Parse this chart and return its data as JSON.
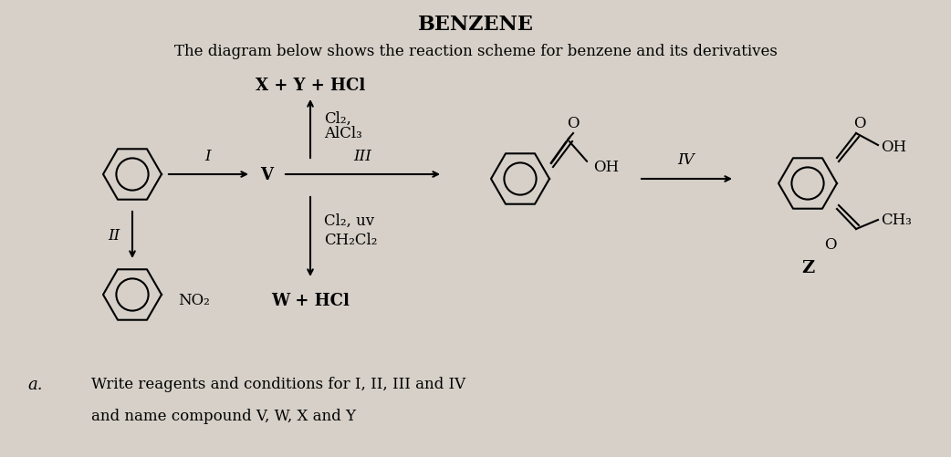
{
  "title": "BENZENE",
  "subtitle": "The diagram below shows the reaction scheme for benzene and its derivatives",
  "bg_color": "#d6d0c8",
  "text_color": "#000000",
  "title_fontsize": 16,
  "subtitle_fontsize": 12,
  "body_fontsize": 12,
  "label_fontsize": 11,
  "top_label": "X + Y + HCl",
  "top_reagent_line1": "Cl₂,",
  "top_reagent_line2": "AlCl₃",
  "label_I": "I",
  "label_II": "II",
  "label_III": "III",
  "label_IV": "IV",
  "label_V": "V",
  "label_Z": "Z",
  "side_reagent_line1": "Cl₂, uv",
  "side_reagent_line2": "CH₂Cl₂",
  "bottom_label": "W + HCl",
  "nitro_label": "NO₂",
  "ch3_label": "CH₃",
  "question_a": "a.",
  "question_text": "Write reagents and conditions for I, II, III and IV",
  "question_text2": "and name compound V, W, X and Y"
}
